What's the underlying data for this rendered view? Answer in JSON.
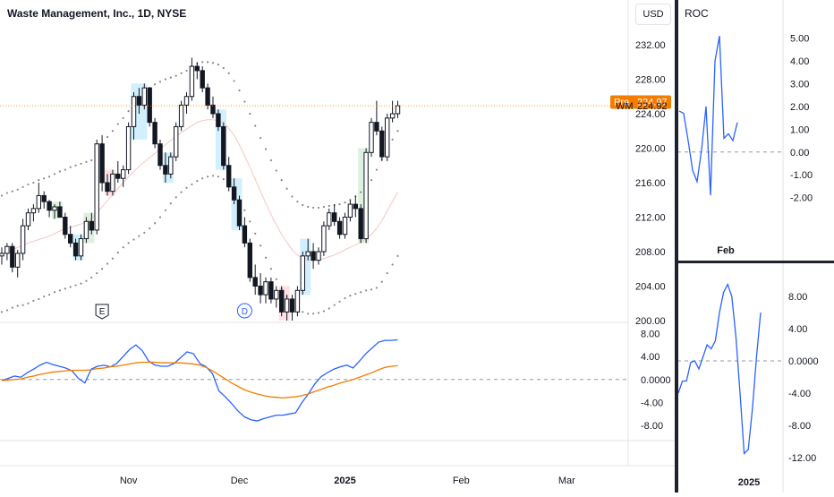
{
  "header": {
    "title": "Waste Management, Inc., 1D, NYSE",
    "currency": "USD"
  },
  "price_labels": {
    "pre_tag": "Pre",
    "pre_price": "224.97",
    "symbol": "WM",
    "last_price": "224.92"
  },
  "events": {
    "earnings": "E",
    "dividend": "D"
  },
  "chart_data": [
    {
      "type": "candlestick",
      "ylim": [
        200,
        234
      ],
      "y_ticks": [
        "232.00",
        "228.00",
        "224.00",
        "220.00",
        "216.00",
        "212.00",
        "208.00",
        "204.00",
        "200.00"
      ],
      "x_ticks": [
        {
          "label": "Nov",
          "i": 24
        },
        {
          "label": "Dec",
          "i": 45
        },
        {
          "label": "2025",
          "i": 65
        },
        {
          "label": "Feb",
          "i": 87
        },
        {
          "label": "Mar",
          "i": 107
        }
      ],
      "candles": [
        [
          207.5,
          208.5,
          206.5,
          207.8
        ],
        [
          207.8,
          209.0,
          207.0,
          208.6
        ],
        [
          208.6,
          209.0,
          205.6,
          206.2
        ],
        [
          206.2,
          208.2,
          205.0,
          207.8
        ],
        [
          207.8,
          211.8,
          207.0,
          211.0
        ],
        [
          211.0,
          213.0,
          210.5,
          212.5
        ],
        [
          212.5,
          213.5,
          211.5,
          213.0
        ],
        [
          213.0,
          216.0,
          212.5,
          214.5
        ],
        [
          214.5,
          215.0,
          213.0,
          213.8
        ],
        [
          213.8,
          214.0,
          212.0,
          212.8
        ],
        [
          212.8,
          213.5,
          211.8,
          213.2
        ],
        [
          213.2,
          213.8,
          212.0,
          212.0
        ],
        [
          212.0,
          212.5,
          209.5,
          210.0
        ],
        [
          210.0,
          211.0,
          208.5,
          209.0
        ],
        [
          209.0,
          209.5,
          207.0,
          207.5
        ],
        [
          207.5,
          210.0,
          207.0,
          209.5
        ],
        [
          209.5,
          212.0,
          209.0,
          211.5
        ],
        [
          211.5,
          212.5,
          210.0,
          210.5
        ],
        [
          210.5,
          221.0,
          210.0,
          220.5
        ],
        [
          220.5,
          221.5,
          215.0,
          216.0
        ],
        [
          216.0,
          217.0,
          214.5,
          215.0
        ],
        [
          215.0,
          217.5,
          214.5,
          217.0
        ],
        [
          217.0,
          218.5,
          216.0,
          216.5
        ],
        [
          216.5,
          218.0,
          215.5,
          217.5
        ],
        [
          217.5,
          223.0,
          217.0,
          222.5
        ],
        [
          222.5,
          226.5,
          221.0,
          226.0
        ],
        [
          226.0,
          227.0,
          224.0,
          225.0
        ],
        [
          225.0,
          227.5,
          224.5,
          227.0
        ],
        [
          227.0,
          227.0,
          222.5,
          223.0
        ],
        [
          223.0,
          223.5,
          220.0,
          220.5
        ],
        [
          220.5,
          221.0,
          217.5,
          218.0
        ],
        [
          218.0,
          219.5,
          216.0,
          217.0
        ],
        [
          217.0,
          219.5,
          216.5,
          219.0
        ],
        [
          219.0,
          223.0,
          218.5,
          222.5
        ],
        [
          222.5,
          225.5,
          222.0,
          225.0
        ],
        [
          225.0,
          226.5,
          224.0,
          226.0
        ],
        [
          226.0,
          230.5,
          225.5,
          229.5
        ],
        [
          229.5,
          230.0,
          228.0,
          229.0
        ],
        [
          229.0,
          229.5,
          226.5,
          227.0
        ],
        [
          227.0,
          227.5,
          224.5,
          225.0
        ],
        [
          225.0,
          226.0,
          223.5,
          224.0
        ],
        [
          224.0,
          224.5,
          222.0,
          222.5
        ],
        [
          222.5,
          223.0,
          217.5,
          218.0
        ],
        [
          218.0,
          219.0,
          215.0,
          215.5
        ],
        [
          215.5,
          216.5,
          213.5,
          214.0
        ],
        [
          214.0,
          214.5,
          210.5,
          211.0
        ],
        [
          211.0,
          212.0,
          208.5,
          209.0
        ],
        [
          209.0,
          209.5,
          204.5,
          205.0
        ],
        [
          205.0,
          206.5,
          203.0,
          204.0
        ],
        [
          204.0,
          205.5,
          202.0,
          203.0
        ],
        [
          203.0,
          205.0,
          202.0,
          204.5
        ],
        [
          204.5,
          205.0,
          202.0,
          202.5
        ],
        [
          202.5,
          204.0,
          201.5,
          203.5
        ],
        [
          203.5,
          204.0,
          200.5,
          201.0
        ],
        [
          201.0,
          203.0,
          200.0,
          202.5
        ],
        [
          202.5,
          203.0,
          200.0,
          201.0
        ],
        [
          201.0,
          204.0,
          200.5,
          203.5
        ],
        [
          203.5,
          208.0,
          203.0,
          207.5
        ],
        [
          207.5,
          209.5,
          207.0,
          208.0
        ],
        [
          208.0,
          209.0,
          206.0,
          207.0
        ],
        [
          207.0,
          208.5,
          206.5,
          208.0
        ],
        [
          208.0,
          211.5,
          207.5,
          211.0
        ],
        [
          211.0,
          213.0,
          210.5,
          212.5
        ],
        [
          212.5,
          213.5,
          211.0,
          211.5
        ],
        [
          211.5,
          212.0,
          209.5,
          210.0
        ],
        [
          210.0,
          212.5,
          209.5,
          212.0
        ],
        [
          212.0,
          214.0,
          211.5,
          213.5
        ],
        [
          213.5,
          214.5,
          212.0,
          213.0
        ],
        [
          213.0,
          213.5,
          209.0,
          209.5
        ],
        [
          209.5,
          220.0,
          209.0,
          219.5
        ],
        [
          219.5,
          223.5,
          219.0,
          223.0
        ],
        [
          223.0,
          225.5,
          221.5,
          222.0
        ],
        [
          222.0,
          222.5,
          218.5,
          219.0
        ],
        [
          219.0,
          224.0,
          218.5,
          223.5
        ],
        [
          223.5,
          225.5,
          223.0,
          224.0
        ],
        [
          224.0,
          225.5,
          223.5,
          224.92
        ]
      ],
      "bollinger": {
        "upper": [
          214.5,
          214.8,
          215.0,
          215.2,
          215.5,
          215.8,
          216.0,
          216.3,
          216.5,
          216.7,
          217.0,
          217.3,
          217.5,
          217.8,
          218.0,
          218.2,
          218.4,
          218.6,
          219.5,
          220.5,
          221.3,
          222.0,
          222.8,
          223.5,
          224.3,
          225.2,
          226.0,
          226.5,
          227.0,
          227.4,
          227.7,
          228.0,
          228.2,
          228.4,
          228.7,
          229.0,
          229.5,
          229.8,
          230.0,
          230.0,
          229.9,
          229.7,
          229.3,
          228.7,
          227.8,
          226.7,
          225.4,
          224.0,
          222.6,
          221.2,
          219.9,
          218.6,
          217.4,
          216.3,
          215.3,
          214.4,
          213.8,
          213.4,
          213.2,
          213.1,
          213.1,
          213.2,
          213.3,
          213.4,
          213.5,
          213.7,
          214.0,
          214.4,
          214.9,
          215.5,
          216.3,
          217.5,
          218.7,
          219.9,
          221.0,
          222.0
        ],
        "lower": [
          201.0,
          201.2,
          201.5,
          201.7,
          201.8,
          202.0,
          202.3,
          202.5,
          202.8,
          203.0,
          203.3,
          203.5,
          203.7,
          203.9,
          204.1,
          204.3,
          204.6,
          205.0,
          205.5,
          206.0,
          206.6,
          207.2,
          207.9,
          208.5,
          209.0,
          209.4,
          209.8,
          210.2,
          210.7,
          211.3,
          212.0,
          212.8,
          213.6,
          214.3,
          214.9,
          215.4,
          215.8,
          216.2,
          216.5,
          216.7,
          216.8,
          216.7,
          216.4,
          215.9,
          215.1,
          214.0,
          212.8,
          211.5,
          210.1,
          208.7,
          207.3,
          206.0,
          204.8,
          203.7,
          202.8,
          202.0,
          201.4,
          201.0,
          200.8,
          200.8,
          200.9,
          201.1,
          201.4,
          201.8,
          202.2,
          202.6,
          202.9,
          203.1,
          203.3,
          203.5,
          203.6,
          203.8,
          204.5,
          205.5,
          206.5,
          207.5
        ],
        "basis": [
          207.8,
          208.0,
          208.2,
          208.5,
          208.7,
          209.0,
          209.2,
          209.4,
          209.6,
          209.8,
          210.1,
          210.4,
          210.6,
          210.8,
          211.0,
          211.2,
          211.5,
          211.8,
          212.5,
          213.2,
          213.9,
          214.6,
          215.3,
          216.0,
          216.7,
          217.3,
          217.9,
          218.4,
          218.9,
          219.4,
          219.9,
          220.4,
          220.9,
          221.4,
          221.8,
          222.2,
          222.6,
          223.0,
          223.2,
          223.3,
          223.3,
          223.2,
          222.9,
          222.3,
          221.5,
          220.4,
          219.1,
          217.8,
          216.4,
          215.0,
          213.6,
          212.3,
          211.1,
          210.0,
          209.1,
          208.2,
          207.6,
          207.2,
          207.0,
          207.0,
          207.0,
          207.2,
          207.4,
          207.6,
          207.9,
          208.2,
          208.5,
          208.8,
          209.1,
          209.5,
          210.0,
          210.7,
          211.6,
          212.7,
          213.8,
          214.9
        ]
      },
      "highlight_zones": [
        {
          "from": 10,
          "to": 11,
          "color": "#c8e6c9"
        },
        {
          "from": 14,
          "to": 15,
          "color": "#b3e5fc"
        },
        {
          "from": 16,
          "to": 17,
          "color": "#c8e6c9"
        },
        {
          "from": 20,
          "to": 21,
          "color": "#ffcdd2"
        },
        {
          "from": 25,
          "to": 27,
          "color": "#b3e5fc"
        },
        {
          "from": 31,
          "to": 32,
          "color": "#b3e5fc"
        },
        {
          "from": 41,
          "to": 42,
          "color": "#b3e5fc"
        },
        {
          "from": 44,
          "to": 45,
          "color": "#b3e5fc"
        },
        {
          "from": 53,
          "to": 54,
          "color": "#ffcdd2"
        },
        {
          "from": 57,
          "to": 58,
          "color": "#b3e5fc"
        },
        {
          "from": 68,
          "to": 69,
          "color": "#c8e6c9"
        }
      ],
      "earnings_index": 19,
      "dividend_index": 46
    },
    {
      "type": "line",
      "name": "oscillator",
      "ylim": [
        -10,
        9
      ],
      "y_ticks": [
        "8.00",
        "4.00",
        "0.0000",
        "-4.00",
        "-8.00"
      ],
      "series": [
        {
          "values": [
            -0.2,
            0.2,
            0.6,
            0.4,
            1.2,
            1.8,
            2.5,
            3.0,
            2.6,
            2.3,
            2.0,
            1.5,
            0.2,
            -0.6,
            1.8,
            2.3,
            2.5,
            2.2,
            2.8,
            4.0,
            5.2,
            6.0,
            5.0,
            3.2,
            2.5,
            2.3,
            2.3,
            2.8,
            3.8,
            4.8,
            4.5,
            2.8,
            2.2,
            1.0,
            -2.0,
            -3.0,
            -4.2,
            -5.5,
            -6.5,
            -7.0,
            -7.2,
            -6.8,
            -6.5,
            -6.2,
            -6.2,
            -6.0,
            -5.8,
            -4.0,
            -2.5,
            -0.8,
            0.5,
            1.2,
            1.8,
            2.2,
            2.5,
            2.0,
            3.2,
            4.5,
            5.5,
            6.5,
            6.8,
            6.8,
            6.9
          ]
        },
        {
          "values": [
            -0.2,
            -0.1,
            0.0,
            0.1,
            0.4,
            0.6,
            0.9,
            1.1,
            1.3,
            1.4,
            1.5,
            1.6,
            1.6,
            1.6,
            1.7,
            1.9,
            2.0,
            2.2,
            2.3,
            2.5,
            2.7,
            2.9,
            3.0,
            3.0,
            3.0,
            2.9,
            2.9,
            2.9,
            2.9,
            2.8,
            2.7,
            2.5,
            2.1,
            1.5,
            0.8,
            0.1,
            -0.6,
            -1.2,
            -1.8,
            -2.2,
            -2.5,
            -2.8,
            -3.0,
            -3.1,
            -3.2,
            -3.1,
            -3.0,
            -2.8,
            -2.5,
            -2.1,
            -1.7,
            -1.3,
            -1.0,
            -0.6,
            -0.3,
            0.0,
            0.4,
            0.8,
            1.2,
            1.7,
            2.1,
            2.3,
            2.4
          ]
        }
      ],
      "colors": [
        "#2962ff",
        "#f57c00"
      ]
    },
    {
      "type": "line",
      "title": "ROC",
      "ylim": [
        -3,
        5.5
      ],
      "y_ticks": [
        "5.00",
        "4.00",
        "3.00",
        "2.00",
        "1.00",
        "0.00",
        "-1.00",
        "-2.00"
      ],
      "x_ticks": [
        {
          "label": "Feb",
          "i": 9
        }
      ],
      "values": [
        1.8,
        1.7,
        0.5,
        -0.8,
        -1.3,
        0.1,
        2.0,
        -1.9,
        4.0,
        5.1,
        0.6,
        0.8,
        0.5,
        1.3
      ]
    },
    {
      "type": "line",
      "ylim": [
        -13,
        11
      ],
      "y_ticks": [
        "8.00",
        "4.00",
        "0.0000",
        "-4.00",
        "-8.00",
        "-12.00"
      ],
      "x_ticks": [
        {
          "label": "2025",
          "i": 8
        }
      ],
      "values": [
        -4.0,
        -2.5,
        -2.5,
        -0.2,
        0.0,
        -1.0,
        0.5,
        2.0,
        1.5,
        2.5,
        6.0,
        8.5,
        9.5,
        8.0,
        3.0,
        -4.0,
        -11.5,
        -11.0,
        -6.0,
        0.5,
        6.0
      ]
    }
  ]
}
